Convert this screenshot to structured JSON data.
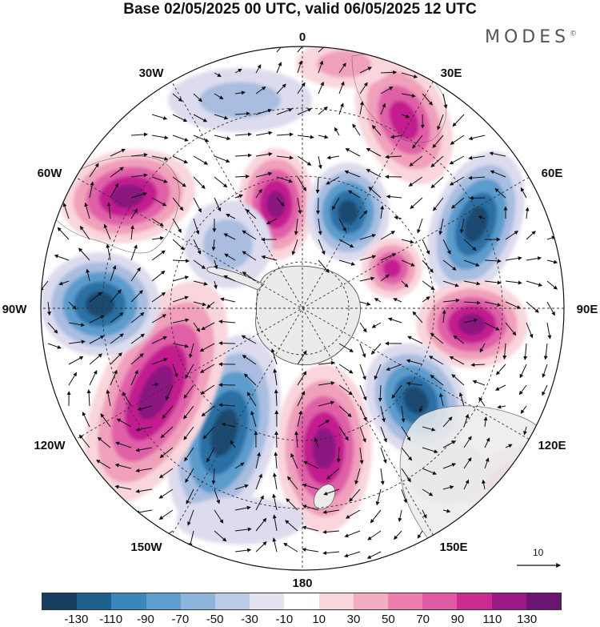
{
  "title": "Base 02/05/2025 00 UTC, valid 06/05/2025 12 UTC",
  "logo": "MODES",
  "logo_mark": "©",
  "longitude_labels": {
    "n0": "0",
    "e30": "30E",
    "e60": "60E",
    "e90": "90E",
    "e120": "120E",
    "e150": "150E",
    "s180": "180",
    "w150": "150W",
    "w120": "120W",
    "w90": "90W",
    "w60": "60W",
    "w30": "30W"
  },
  "vector_reference": "10",
  "colorbar": {
    "colors": [
      "#173e5e",
      "#1f5f8b",
      "#3b86bd",
      "#5e9fcf",
      "#8db4da",
      "#bccce6",
      "#e3e2f0",
      "#ffffff",
      "#f9d6dc",
      "#f3adc0",
      "#ec7fae",
      "#e05aa3",
      "#c92b90",
      "#9c1a86",
      "#6a1670"
    ],
    "ticks": [
      "-130",
      "-110",
      "-90",
      "-70",
      "-50",
      "-30",
      "-10",
      "10",
      "30",
      "50",
      "70",
      "90",
      "110",
      "130"
    ]
  },
  "colors": {
    "antarctica": "#ececec",
    "outline": "#333333"
  }
}
